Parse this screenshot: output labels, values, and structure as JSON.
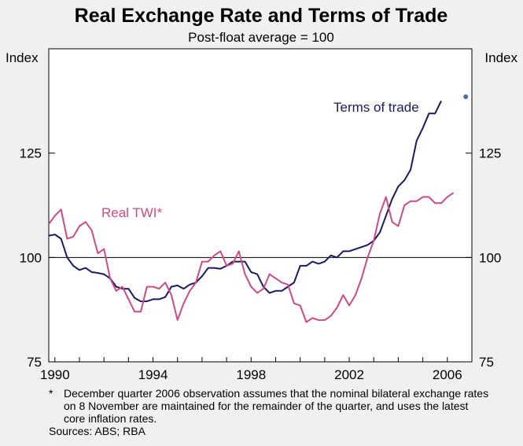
{
  "chart_data": {
    "type": "line",
    "title": "Real Exchange Rate and Terms of Trade",
    "subtitle": "Post-float average = 100",
    "ylabel_left": "Index",
    "ylabel_right": "Index",
    "xlim": [
      1989.75,
      2007.0
    ],
    "ylim": [
      75,
      150
    ],
    "yticks": [
      75,
      100,
      125
    ],
    "xticks": [
      1990,
      1994,
      1998,
      2002,
      2006
    ],
    "reference_line": 100,
    "grid": false,
    "series": [
      {
        "name": "Terms of trade",
        "color": "#1a1a5e",
        "x_start": 1989.75,
        "step": 0.25,
        "values": [
          105.2,
          105.5,
          104.5,
          100.0,
          98.0,
          97.0,
          97.5,
          96.5,
          96.3,
          96.0,
          95.0,
          93.0,
          92.5,
          92.5,
          90.3,
          89.5,
          89.5,
          90.0,
          90.0,
          90.5,
          93.0,
          93.3,
          92.5,
          93.5,
          94.0,
          95.5,
          97.5,
          97.5,
          97.3,
          98.0,
          99.0,
          99.0,
          99.0,
          96.5,
          96.0,
          93.0,
          91.5,
          92.0,
          92.0,
          93.0,
          94.0,
          98.0,
          98.0,
          99.0,
          98.5,
          99.0,
          100.5,
          100.0,
          101.5,
          101.5,
          102.0,
          102.5,
          103.0,
          104.0,
          106.0,
          110.0,
          114.0,
          117.0,
          118.5,
          121.0,
          128.0,
          131.0,
          134.5,
          134.5,
          137.5
        ]
      },
      {
        "name": "Real TWI*",
        "color": "#cc4b86",
        "x_start": 1989.75,
        "step": 0.25,
        "values": [
          108.0,
          110.0,
          111.5,
          104.5,
          105.0,
          107.5,
          108.5,
          106.5,
          101.0,
          102.0,
          95.0,
          92.0,
          93.0,
          90.0,
          87.0,
          87.0,
          93.0,
          93.0,
          92.5,
          94.0,
          91.0,
          85.0,
          89.0,
          92.0,
          94.0,
          99.0,
          99.0,
          100.5,
          101.5,
          98.0,
          98.5,
          101.5,
          96.0,
          93.0,
          91.5,
          92.5,
          96.0,
          95.0,
          94.0,
          93.5,
          89.0,
          88.5,
          84.5,
          85.5,
          85.0,
          85.0,
          86.0,
          88.0,
          91.0,
          88.5,
          91.0,
          95.0,
          100.0,
          104.0,
          110.5,
          114.5,
          108.5,
          107.5,
          112.5,
          113.5,
          113.5,
          114.5,
          114.5,
          113.0,
          113.0,
          114.5,
          115.5
        ]
      }
    ],
    "extra_points": [
      {
        "series": "Terms of trade",
        "x": 2006.75,
        "y": 138.5
      }
    ],
    "annotations": [
      {
        "series": "Terms of trade",
        "text": "Terms of trade"
      },
      {
        "series": "Real TWI*",
        "text": "Real TWI*"
      }
    ]
  },
  "footnote": {
    "marker": "*",
    "text": "December quarter 2006 observation assumes that the nominal bilateral exchange rates on 8 November are maintained for the remainder of the quarter, and uses the latest core inflation rates.",
    "sources": "Sources: ABS; RBA"
  }
}
